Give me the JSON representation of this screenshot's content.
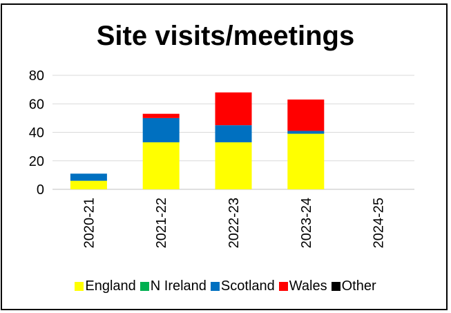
{
  "chart_data": {
    "type": "bar",
    "stacked": true,
    "title": "Site visits/meetings",
    "categories": [
      "2020-21",
      "2021-22",
      "2022-23",
      "2023-24",
      "2024-25"
    ],
    "series": [
      {
        "name": "England",
        "color": "#ffff00",
        "values": [
          6,
          33,
          33,
          39,
          0
        ]
      },
      {
        "name": "N Ireland",
        "color": "#00b050",
        "values": [
          0,
          0,
          0,
          0,
          0
        ]
      },
      {
        "name": "Scotland",
        "color": "#0070c0",
        "values": [
          5,
          17,
          12,
          2,
          0
        ]
      },
      {
        "name": "Wales",
        "color": "#ff0000",
        "values": [
          0,
          3,
          23,
          22,
          0
        ]
      },
      {
        "name": "Other",
        "color": "#000000",
        "values": [
          0,
          0,
          0,
          0,
          0
        ]
      }
    ],
    "yticks": [
      0,
      20,
      40,
      60,
      80
    ],
    "ylim": [
      0,
      80
    ],
    "grid": true,
    "legend_position": "bottom"
  }
}
